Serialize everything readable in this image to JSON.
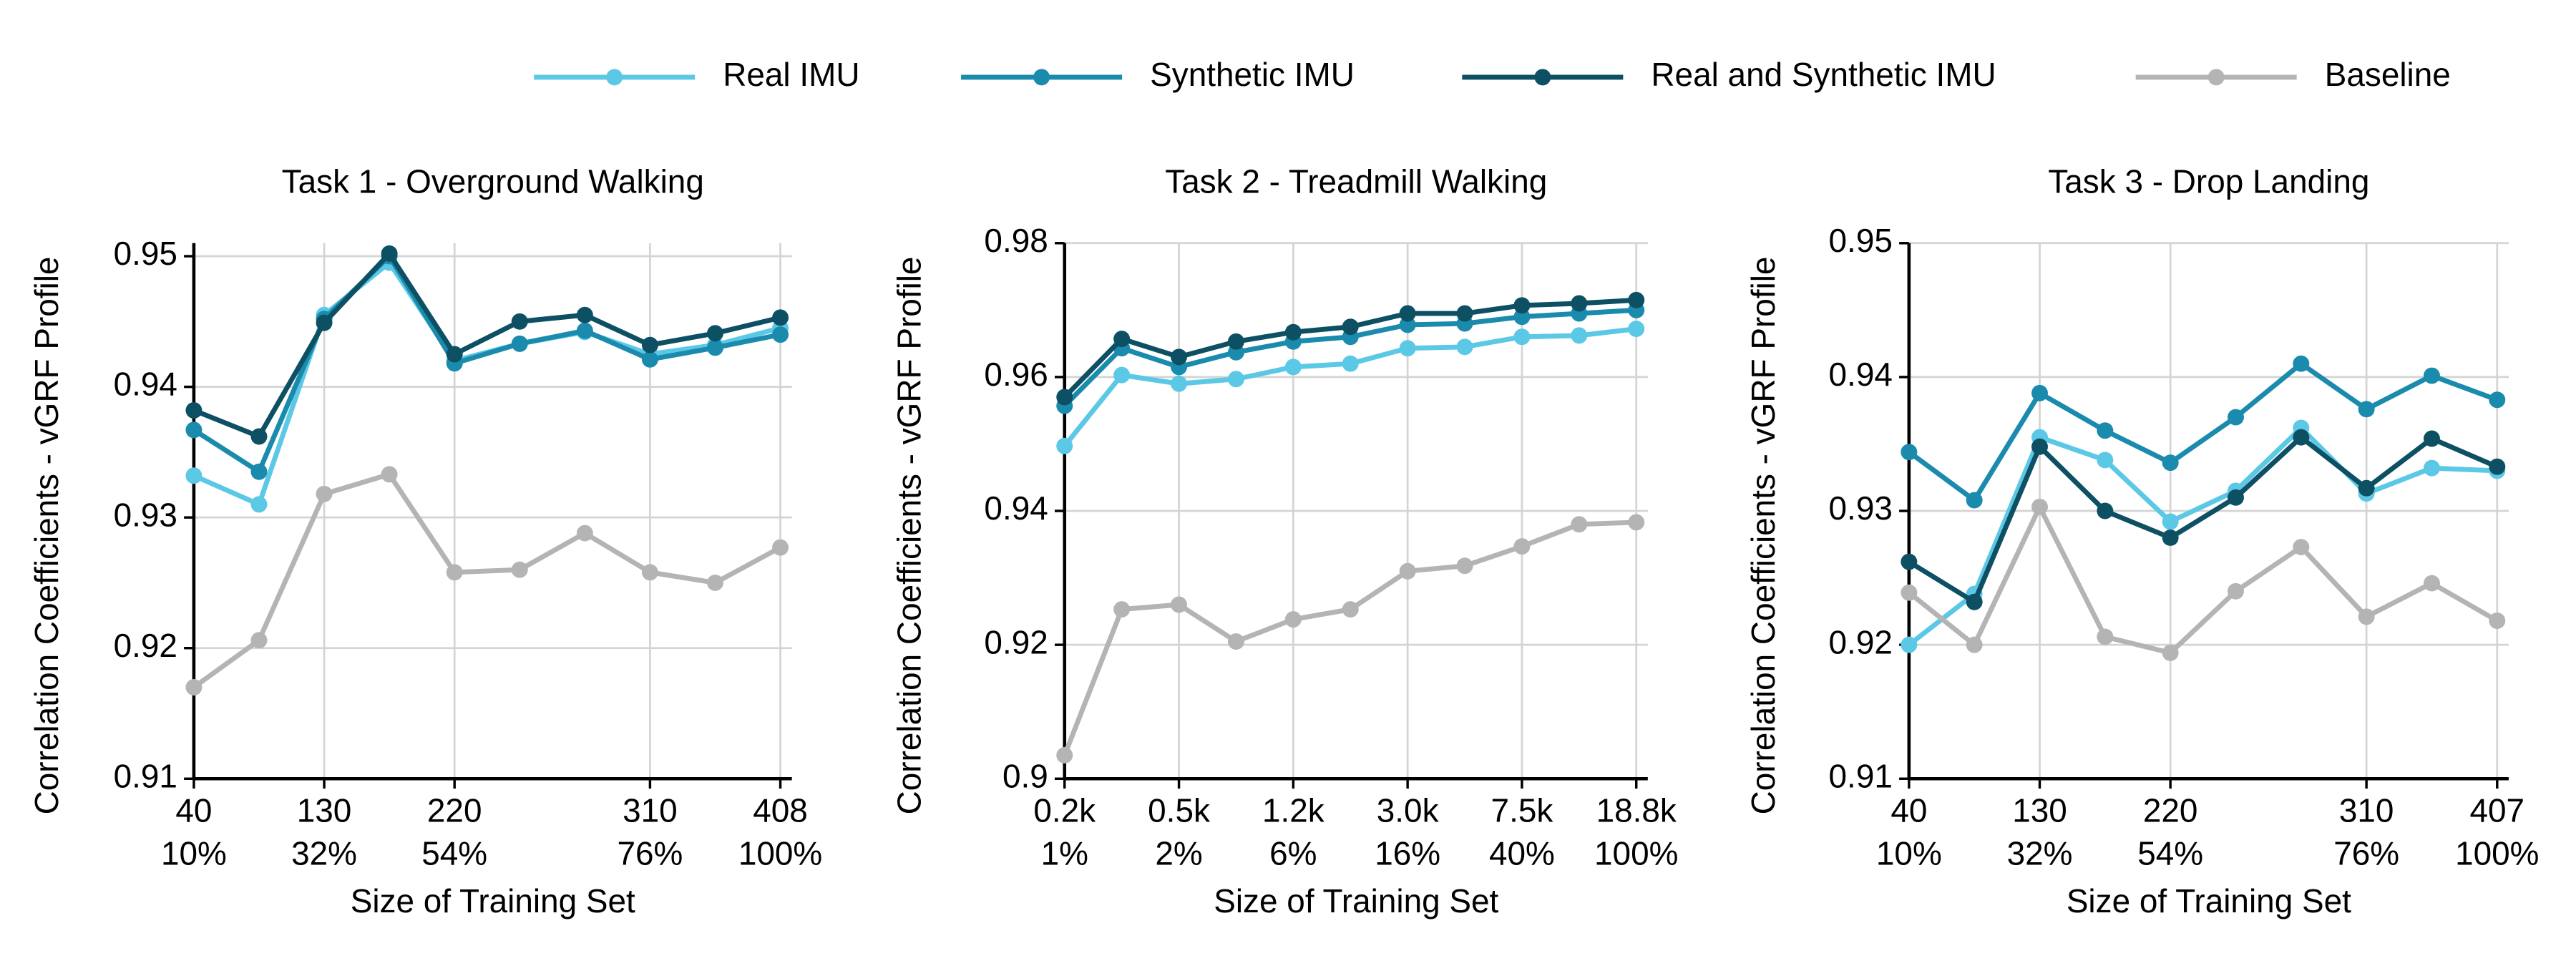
{
  "chart_data": [
    {
      "type": "line",
      "title": "Task 1 - Overground Walking",
      "xlabel": "Size of Training Set",
      "ylabel": "Correlation Coefficients - vGRF Profile",
      "categories": [
        "40",
        null,
        "130",
        null,
        "220",
        null,
        null,
        "310",
        null,
        "408"
      ],
      "categories_pct": [
        "10%",
        null,
        "32%",
        null,
        "54%",
        null,
        null,
        "76%",
        null,
        "100%"
      ],
      "ylim": [
        0.91,
        0.951
      ],
      "yticks": [
        0.91,
        0.92,
        0.93,
        0.94,
        0.95
      ],
      "grid": true,
      "series": [
        {
          "name": "Real IMU",
          "color": "#5bc8e6",
          "values": [
            0.9332,
            0.931,
            0.9455,
            0.9495,
            0.942,
            0.9433,
            0.9442,
            0.9425,
            0.9432,
            0.9445
          ]
        },
        {
          "name": "Synthetic IMU",
          "color": "#1a8aad",
          "values": [
            0.9367,
            0.9335,
            0.9452,
            0.95,
            0.9418,
            0.9433,
            0.9443,
            0.9421,
            0.943,
            0.944
          ]
        },
        {
          "name": "Real and Synthetic IMU",
          "color": "#0d4f63",
          "values": [
            0.9382,
            0.9362,
            0.9449,
            0.9502,
            0.9425,
            0.945,
            0.9455,
            0.9432,
            0.9441,
            0.9453
          ]
        },
        {
          "name": "Baseline",
          "color": "#b4b4b4",
          "values": [
            0.917,
            0.9206,
            0.9318,
            0.9333,
            0.9258,
            0.926,
            0.9288,
            0.9258,
            0.925,
            0.9277
          ]
        }
      ]
    },
    {
      "type": "line",
      "title": "Task 2 - Treadmill Walking",
      "xlabel": "Size of Training Set",
      "ylabel": "Correlation Coefficients - vGRF Profile",
      "categories": [
        "0.2k",
        null,
        "0.5k",
        null,
        "1.2k",
        null,
        "3.0k",
        null,
        "7.5k",
        null,
        "18.8k"
      ],
      "categories_pct": [
        "1%",
        null,
        "2%",
        null,
        "6%",
        null,
        "16%",
        null,
        "40%",
        null,
        "100%"
      ],
      "ylim": [
        0.9,
        0.98
      ],
      "yticks": [
        0.9,
        0.92,
        0.94,
        0.96,
        0.98
      ],
      "grid": true,
      "series": [
        {
          "name": "Real IMU",
          "color": "#5bc8e6",
          "values": [
            0.9497,
            0.9603,
            0.959,
            0.9597,
            0.9615,
            0.962,
            0.9643,
            0.9645,
            0.966,
            0.9662,
            0.9672
          ]
        },
        {
          "name": "Synthetic IMU",
          "color": "#1a8aad",
          "values": [
            0.9557,
            0.9643,
            0.9615,
            0.9637,
            0.9653,
            0.966,
            0.9678,
            0.968,
            0.969,
            0.9695,
            0.97
          ]
        },
        {
          "name": "Real and Synthetic IMU",
          "color": "#0d4f63",
          "values": [
            0.957,
            0.9657,
            0.963,
            0.9653,
            0.9667,
            0.9675,
            0.9695,
            0.9695,
            0.9707,
            0.971,
            0.9715
          ]
        },
        {
          "name": "Baseline",
          "color": "#b4b4b4",
          "values": [
            0.9035,
            0.9253,
            0.926,
            0.9205,
            0.9238,
            0.9253,
            0.931,
            0.9318,
            0.9347,
            0.938,
            0.9383
          ]
        }
      ]
    },
    {
      "type": "line",
      "title": "Task 3 - Drop Landing",
      "xlabel": "Size of Training Set",
      "ylabel": "Correlation Coefficients - vGRF Profile",
      "categories": [
        "40",
        null,
        "130",
        null,
        "220",
        null,
        null,
        "310",
        null,
        "407"
      ],
      "categories_pct": [
        "10%",
        null,
        "32%",
        null,
        "54%",
        null,
        null,
        "76%",
        null,
        "100%"
      ],
      "ylim": [
        0.91,
        0.95
      ],
      "yticks": [
        0.91,
        0.92,
        0.93,
        0.94,
        0.95
      ],
      "grid": true,
      "series": [
        {
          "name": "Real IMU",
          "color": "#5bc8e6",
          "values": [
            0.92,
            0.9238,
            0.9355,
            0.9338,
            0.9292,
            0.9315,
            0.9362,
            0.9313,
            0.9332,
            0.933
          ]
        },
        {
          "name": "Synthetic IMU",
          "color": "#1a8aad",
          "values": [
            0.9344,
            0.9308,
            0.9388,
            0.936,
            0.9336,
            0.937,
            0.941,
            0.9376,
            0.9401,
            0.9383
          ]
        },
        {
          "name": "Real and Synthetic IMU",
          "color": "#0d4f63",
          "values": [
            0.9262,
            0.9232,
            0.9348,
            0.93,
            0.928,
            0.931,
            0.9355,
            0.9317,
            0.9354,
            0.9333
          ]
        },
        {
          "name": "Baseline",
          "color": "#b4b4b4",
          "values": [
            0.9239,
            0.92,
            0.9303,
            0.9206,
            0.9194,
            0.924,
            0.9273,
            0.9221,
            0.9246,
            0.9218
          ]
        }
      ]
    }
  ]
}
